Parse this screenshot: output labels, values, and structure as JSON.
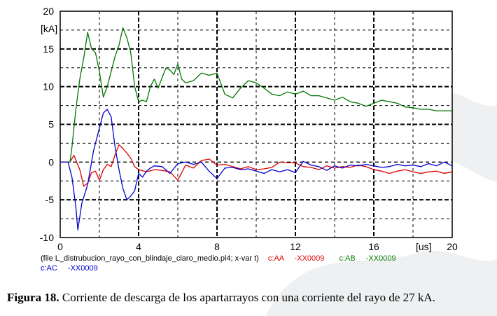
{
  "chart_data": {
    "type": "line",
    "unit_y": "[kA]",
    "unit_x": "[us]",
    "xlim": [
      0,
      20
    ],
    "ylim": [
      -10,
      20
    ],
    "x_ticks": [
      "0",
      "4",
      "8",
      "12",
      "16",
      "20"
    ],
    "y_ticks": [
      "-10",
      "-5",
      "0",
      "5",
      "10",
      "15",
      "20"
    ],
    "grid": true,
    "legend": {
      "file_text": "(file L_distrubucion_rayo_con_blindaje_claro_medio.pl4; x-var t)",
      "entries": [
        {
          "label": "c:AA",
          "suffix": "-XX0009",
          "color": "#dd0000"
        },
        {
          "label": "c:AB",
          "suffix": "-XX0009",
          "color": "#007700"
        },
        {
          "label": "c:AC",
          "suffix": "-XX0009",
          "color": "#0000cc"
        }
      ]
    },
    "series": [
      {
        "name": "c:AA -XX0009",
        "color": "#dd0000",
        "x": [
          0,
          0.5,
          0.7,
          1.0,
          1.2,
          1.4,
          1.6,
          1.8,
          2.0,
          2.2,
          2.4,
          2.6,
          2.8,
          3.0,
          3.2,
          3.4,
          3.6,
          3.8,
          4.0,
          4.4,
          4.8,
          5.2,
          5.6,
          6.0,
          6.4,
          6.8,
          7.2,
          7.6,
          8.0,
          8.4,
          8.8,
          9.2,
          9.6,
          10.0,
          10.4,
          10.8,
          11.2,
          11.6,
          12.0,
          12.4,
          12.8,
          13.2,
          13.6,
          14.0,
          14.4,
          14.8,
          15.2,
          15.6,
          16.0,
          16.4,
          16.8,
          17.2,
          17.6,
          18.0,
          18.4,
          18.8,
          19.2,
          19.6,
          20.0
        ],
        "y": [
          0,
          0,
          0.9,
          -1.0,
          -3.2,
          -2.8,
          -1.4,
          -1.2,
          -2.4,
          -1.0,
          -0.3,
          -0.6,
          1.0,
          2.3,
          1.8,
          1.2,
          0.5,
          -0.6,
          -1.0,
          -1.3,
          -1.0,
          -1.1,
          -1.3,
          -2.4,
          -0.4,
          -0.8,
          0.2,
          0.4,
          -0.4,
          -0.3,
          -0.6,
          -0.9,
          -0.6,
          -1.0,
          -0.9,
          -0.7,
          0.0,
          -0.1,
          -0.1,
          -0.6,
          -0.7,
          -1.0,
          -0.5,
          -0.8,
          -0.6,
          -0.7,
          -0.4,
          -0.6,
          -1.0,
          -1.2,
          -1.5,
          -1.2,
          -1.0,
          -1.3,
          -1.5,
          -1.3,
          -1.2,
          -1.5,
          -1.3
        ]
      },
      {
        "name": "c:AB -XX0009",
        "color": "#007700",
        "x": [
          0,
          0.5,
          0.6,
          0.8,
          1.0,
          1.2,
          1.4,
          1.6,
          1.8,
          2.0,
          2.2,
          2.4,
          2.6,
          2.8,
          3.0,
          3.2,
          3.4,
          3.6,
          3.8,
          4.0,
          4.2,
          4.4,
          4.6,
          4.8,
          5.0,
          5.2,
          5.4,
          5.6,
          5.8,
          6.0,
          6.2,
          6.4,
          6.8,
          7.2,
          7.6,
          8.0,
          8.4,
          8.8,
          9.2,
          9.6,
          10.0,
          10.4,
          10.8,
          11.2,
          11.6,
          12.0,
          12.4,
          12.8,
          13.2,
          13.6,
          14.0,
          14.4,
          14.8,
          15.2,
          15.6,
          16.0,
          16.4,
          16.8,
          17.2,
          17.6,
          18.0,
          18.4,
          18.8,
          19.2,
          19.6,
          20.0
        ],
        "y": [
          0,
          0,
          2.0,
          7.0,
          11.0,
          13.8,
          17.2,
          15.0,
          14.5,
          12.0,
          8.6,
          10.0,
          12.0,
          14.0,
          15.5,
          17.8,
          16.5,
          14.5,
          10.0,
          8.0,
          8.2,
          8.0,
          10.0,
          11.0,
          9.8,
          11.2,
          12.5,
          12.2,
          11.6,
          13.0,
          11.0,
          10.5,
          10.8,
          11.8,
          11.5,
          11.8,
          9.0,
          8.5,
          9.8,
          10.8,
          10.5,
          9.8,
          9.0,
          8.8,
          9.3,
          9.0,
          9.4,
          8.8,
          8.8,
          8.5,
          8.2,
          8.6,
          8.0,
          7.8,
          7.4,
          7.8,
          8.2,
          8.0,
          7.8,
          7.3,
          7.2,
          7.0,
          7.0,
          6.8,
          6.8,
          6.8
        ]
      },
      {
        "name": "c:AC -XX0009",
        "color": "#0000cc",
        "x": [
          0,
          0.4,
          0.6,
          0.8,
          0.9,
          1.1,
          1.4,
          1.7,
          2.0,
          2.2,
          2.4,
          2.6,
          2.8,
          3.0,
          3.2,
          3.4,
          3.6,
          3.8,
          4.0,
          4.2,
          4.4,
          4.6,
          4.8,
          5.2,
          5.6,
          6.0,
          6.4,
          6.8,
          7.2,
          7.6,
          8.0,
          8.4,
          8.8,
          9.2,
          9.6,
          10.0,
          10.4,
          10.8,
          11.2,
          11.6,
          12.0,
          12.4,
          12.8,
          13.2,
          13.6,
          14.0,
          14.4,
          14.8,
          15.2,
          15.6,
          16.0,
          16.4,
          16.8,
          17.2,
          17.6,
          18.0,
          18.4,
          18.8,
          19.2,
          19.6,
          20.0
        ],
        "y": [
          0,
          0,
          -2.0,
          -6.0,
          -9.0,
          -5.5,
          -3.0,
          1.5,
          4.5,
          6.5,
          7.0,
          6.0,
          2.0,
          -1.0,
          -3.5,
          -5.0,
          -4.5,
          -3.8,
          -1.5,
          -2.0,
          -1.2,
          -0.8,
          -0.5,
          -0.6,
          -1.5,
          -0.2,
          0.0,
          -0.3,
          0.0,
          -1.2,
          -2.2,
          -0.8,
          -0.7,
          -1.0,
          -0.9,
          -1.2,
          -1.5,
          -1.0,
          -1.3,
          -1.0,
          -1.4,
          0.1,
          -0.4,
          -0.6,
          -1.1,
          -0.5,
          -0.8,
          -0.4,
          -0.5,
          -0.3,
          -0.5,
          -0.7,
          -0.6,
          -0.3,
          -0.5,
          -0.4,
          -0.6,
          -0.2,
          -0.5,
          0.0,
          -0.5
        ]
      }
    ]
  },
  "caption": {
    "label": "Figura 18.",
    "text": " Corriente de descarga de los apartarrayos con una corriente del rayo de 27 kA."
  }
}
